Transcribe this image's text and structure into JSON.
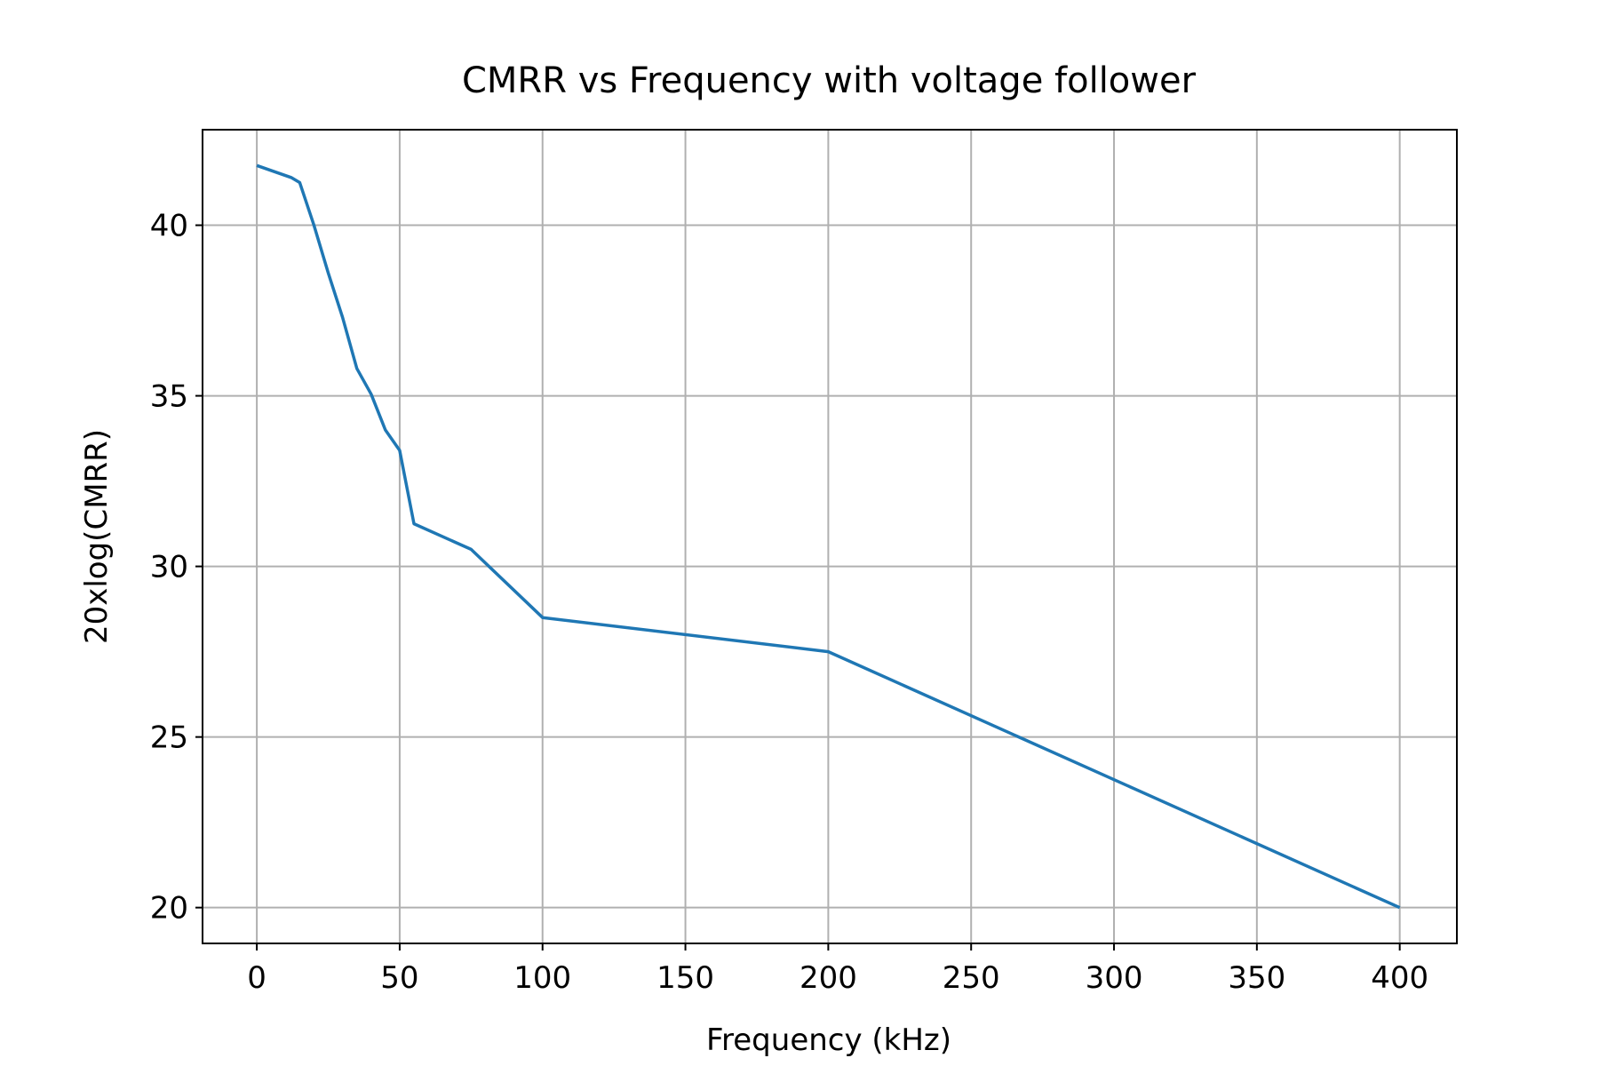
{
  "chart_data": {
    "type": "line",
    "title": "CMRR vs Frequency with voltage follower",
    "xlabel": "Frequency (kHz)",
    "ylabel": "20xlog(CMRR)",
    "xlim": [
      -19,
      420
    ],
    "ylim": [
      18.95,
      42.8
    ],
    "xticks": [
      0,
      50,
      100,
      150,
      200,
      250,
      300,
      350,
      400
    ],
    "yticks": [
      20,
      25,
      30,
      35,
      40
    ],
    "grid": true,
    "series_color": "#1f77b4",
    "series": [
      {
        "x": [
          0,
          12,
          15,
          20,
          25,
          30,
          35,
          40,
          45,
          50,
          55,
          75,
          100,
          200,
          400
        ],
        "y": [
          41.75,
          41.4,
          41.25,
          40.0,
          38.6,
          37.3,
          35.8,
          35.05,
          34.0,
          33.4,
          31.25,
          30.5,
          28.5,
          27.5,
          20.0
        ]
      }
    ]
  }
}
